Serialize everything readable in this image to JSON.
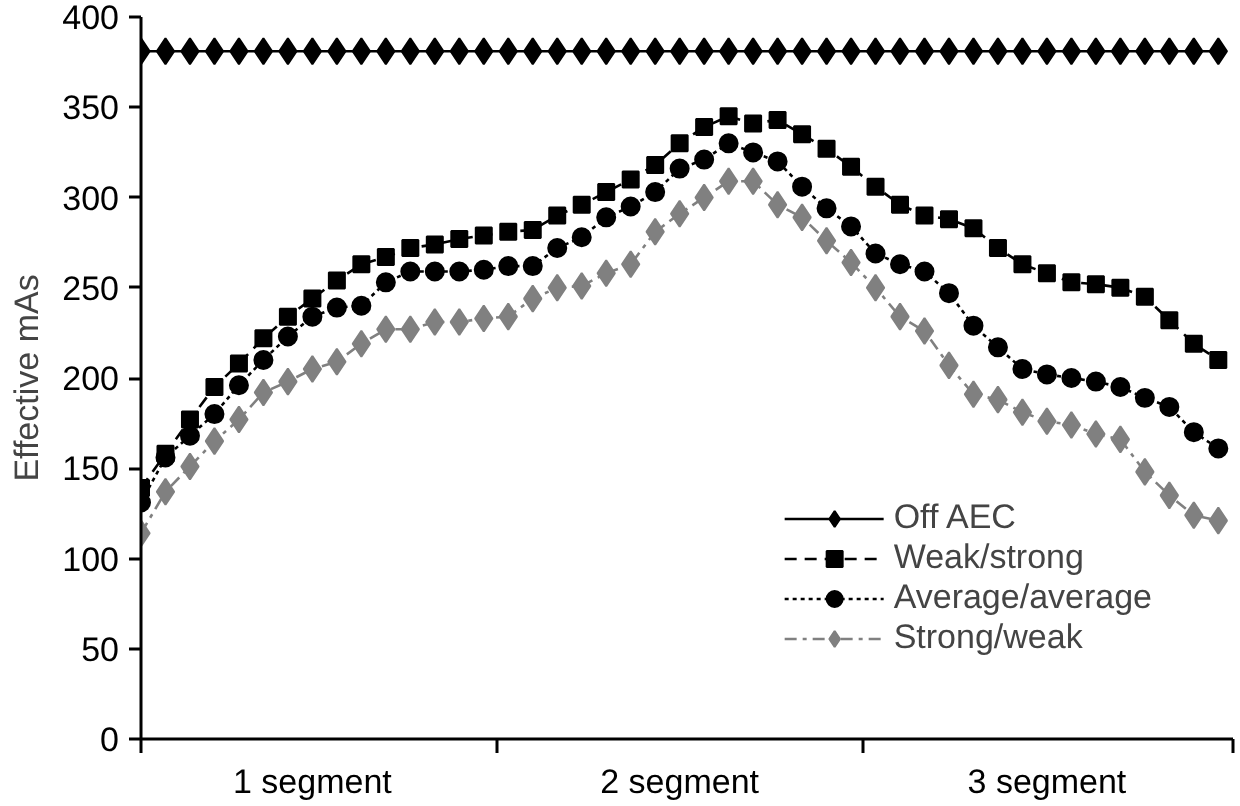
{
  "chart_data": {
    "type": "line",
    "ylabel": "Effective mAs",
    "categories": [
      null,
      null,
      null,
      null,
      null,
      null,
      null,
      null,
      null,
      null,
      null,
      null,
      null,
      null,
      null,
      null,
      null,
      null,
      null,
      null,
      null,
      null,
      null,
      null,
      null,
      null,
      null,
      null,
      null,
      null,
      null,
      null,
      null,
      null,
      null,
      null,
      null,
      null,
      null,
      null,
      null,
      null,
      null,
      null,
      null
    ],
    "annotations": [
      "1 segment",
      "2 segment",
      "3 segment"
    ],
    "ylim": [
      0,
      400
    ],
    "yticks": [
      0,
      50,
      100,
      150,
      200,
      250,
      300,
      350,
      400
    ],
    "grid": false,
    "legend": "bottom right",
    "series": [
      {
        "name": "Off AEC",
        "color": "#000000",
        "marker": "diamond",
        "line_style": "solid",
        "values": [
          381,
          381,
          381,
          381,
          381,
          381,
          381,
          381,
          381,
          381,
          381,
          381,
          381,
          381,
          381,
          381,
          381,
          381,
          381,
          381,
          381,
          381,
          381,
          381,
          381,
          381,
          381,
          381,
          381,
          381,
          381,
          381,
          381,
          381,
          381,
          381,
          381,
          381,
          381,
          381,
          381,
          381,
          381,
          381,
          381
        ]
      },
      {
        "name": "Weak/strong",
        "color": "#000000",
        "marker": "square",
        "line_style": "dashed",
        "values": [
          139,
          158,
          177,
          195,
          208,
          222,
          234,
          244,
          254,
          263,
          267,
          272,
          274,
          277,
          279,
          281,
          282,
          290,
          296,
          303,
          310,
          318,
          330,
          339,
          345,
          341,
          343,
          335,
          327,
          317,
          306,
          296,
          290,
          288,
          283,
          272,
          263,
          258,
          253,
          252,
          250,
          245,
          232,
          219,
          210
        ]
      },
      {
        "name": "Average/average",
        "color": "#000000",
        "marker": "circle",
        "line_style": "dotted",
        "values": [
          131,
          156,
          168,
          180,
          196,
          210,
          223,
          234,
          239,
          240,
          253,
          259,
          259,
          259,
          260,
          262,
          262,
          272,
          278,
          289,
          295,
          303,
          316,
          321,
          330,
          325,
          320,
          306,
          294,
          284,
          269,
          263,
          259,
          247,
          229,
          217,
          205,
          202,
          200,
          198,
          195,
          189,
          184,
          170,
          161
        ]
      },
      {
        "name": "Strong/weak",
        "color": "#808080",
        "marker": "diamond",
        "line_style": "dashdot",
        "values": [
          114,
          137,
          151,
          165,
          177,
          192,
          198,
          205,
          209,
          219,
          227,
          227,
          231,
          231,
          233,
          234,
          244,
          250,
          251,
          258,
          263,
          281,
          291,
          300,
          309,
          309,
          296,
          289,
          276,
          264,
          250,
          234,
          226,
          207,
          191,
          188,
          181,
          176,
          174,
          169,
          166,
          148,
          135,
          124,
          121
        ]
      }
    ]
  }
}
